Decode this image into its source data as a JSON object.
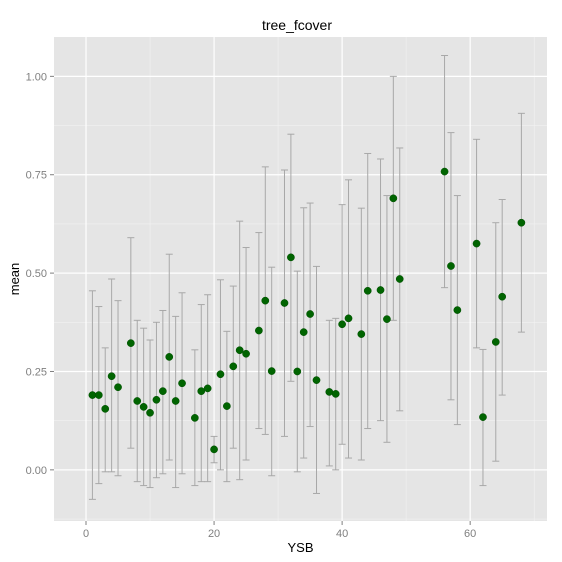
{
  "chart_data": {
    "type": "scatter",
    "title": "tree_fcover",
    "xlabel": "YSB",
    "ylabel": "mean",
    "xlim": [
      -5,
      72
    ],
    "ylim": [
      -0.13,
      1.1
    ],
    "x_ticks": [
      0,
      20,
      40,
      60
    ],
    "x_tick_labels": [
      "0",
      "20",
      "40",
      "60"
    ],
    "y_ticks": [
      0,
      0.25,
      0.5,
      0.75,
      1.0
    ],
    "y_tick_labels": [
      "0.00",
      "0.25",
      "0.50",
      "0.75",
      "1.00"
    ],
    "grid": true,
    "error_bars": true,
    "points": [
      {
        "x": 1,
        "y": 0.19,
        "lo": -0.075,
        "hi": 0.455
      },
      {
        "x": 2,
        "y": 0.19,
        "lo": -0.035,
        "hi": 0.415
      },
      {
        "x": 3,
        "y": 0.155,
        "lo": -0.005,
        "hi": 0.31
      },
      {
        "x": 4,
        "y": 0.238,
        "lo": -0.005,
        "hi": 0.485
      },
      {
        "x": 5,
        "y": 0.21,
        "lo": -0.015,
        "hi": 0.43
      },
      {
        "x": 7,
        "y": 0.322,
        "lo": 0.055,
        "hi": 0.59
      },
      {
        "x": 8,
        "y": 0.175,
        "lo": -0.03,
        "hi": 0.38
      },
      {
        "x": 9,
        "y": 0.16,
        "lo": -0.04,
        "hi": 0.36
      },
      {
        "x": 10,
        "y": 0.145,
        "lo": -0.045,
        "hi": 0.33
      },
      {
        "x": 11,
        "y": 0.178,
        "lo": -0.02,
        "hi": 0.375
      },
      {
        "x": 12,
        "y": 0.2,
        "lo": -0.01,
        "hi": 0.405
      },
      {
        "x": 13,
        "y": 0.287,
        "lo": 0.025,
        "hi": 0.548
      },
      {
        "x": 14,
        "y": 0.175,
        "lo": -0.045,
        "hi": 0.39
      },
      {
        "x": 15,
        "y": 0.22,
        "lo": -0.01,
        "hi": 0.45
      },
      {
        "x": 17,
        "y": 0.132,
        "lo": -0.04,
        "hi": 0.305
      },
      {
        "x": 18,
        "y": 0.2,
        "lo": -0.03,
        "hi": 0.42
      },
      {
        "x": 19,
        "y": 0.207,
        "lo": -0.03,
        "hi": 0.445
      },
      {
        "x": 20,
        "y": 0.052,
        "lo": 0.018,
        "hi": 0.085
      },
      {
        "x": 21,
        "y": 0.243,
        "lo": 0.0,
        "hi": 0.483
      },
      {
        "x": 22,
        "y": 0.162,
        "lo": -0.03,
        "hi": 0.352
      },
      {
        "x": 23,
        "y": 0.263,
        "lo": 0.055,
        "hi": 0.467
      },
      {
        "x": 24,
        "y": 0.304,
        "lo": -0.025,
        "hi": 0.632
      },
      {
        "x": 25,
        "y": 0.295,
        "lo": 0.025,
        "hi": 0.565
      },
      {
        "x": 27,
        "y": 0.354,
        "lo": 0.105,
        "hi": 0.603
      },
      {
        "x": 28,
        "y": 0.43,
        "lo": 0.09,
        "hi": 0.77
      },
      {
        "x": 29,
        "y": 0.251,
        "lo": -0.015,
        "hi": 0.515
      },
      {
        "x": 31,
        "y": 0.424,
        "lo": 0.085,
        "hi": 0.762
      },
      {
        "x": 32,
        "y": 0.54,
        "lo": 0.225,
        "hi": 0.853
      },
      {
        "x": 33,
        "y": 0.25,
        "lo": -0.005,
        "hi": 0.505
      },
      {
        "x": 34,
        "y": 0.35,
        "lo": 0.03,
        "hi": 0.666
      },
      {
        "x": 35,
        "y": 0.396,
        "lo": 0.11,
        "hi": 0.678
      },
      {
        "x": 36,
        "y": 0.228,
        "lo": -0.06,
        "hi": 0.517
      },
      {
        "x": 38,
        "y": 0.198,
        "lo": 0.01,
        "hi": 0.38
      },
      {
        "x": 39,
        "y": 0.193,
        "lo": 0.0,
        "hi": 0.385
      },
      {
        "x": 40,
        "y": 0.37,
        "lo": 0.065,
        "hi": 0.674
      },
      {
        "x": 41,
        "y": 0.385,
        "lo": 0.03,
        "hi": 0.737
      },
      {
        "x": 43,
        "y": 0.345,
        "lo": 0.025,
        "hi": 0.665
      },
      {
        "x": 44,
        "y": 0.455,
        "lo": 0.105,
        "hi": 0.804
      },
      {
        "x": 46,
        "y": 0.457,
        "lo": 0.125,
        "hi": 0.79
      },
      {
        "x": 47,
        "y": 0.383,
        "lo": 0.07,
        "hi": 0.697
      },
      {
        "x": 48,
        "y": 0.69,
        "lo": 0.38,
        "hi": 1.0
      },
      {
        "x": 49,
        "y": 0.485,
        "lo": 0.15,
        "hi": 0.818
      },
      {
        "x": 56,
        "y": 0.758,
        "lo": 0.463,
        "hi": 1.053
      },
      {
        "x": 57,
        "y": 0.518,
        "lo": 0.178,
        "hi": 0.857
      },
      {
        "x": 58,
        "y": 0.406,
        "lo": 0.115,
        "hi": 0.697
      },
      {
        "x": 61,
        "y": 0.575,
        "lo": 0.31,
        "hi": 0.84
      },
      {
        "x": 62,
        "y": 0.134,
        "lo": -0.04,
        "hi": 0.306
      },
      {
        "x": 64,
        "y": 0.325,
        "lo": 0.022,
        "hi": 0.628
      },
      {
        "x": 65,
        "y": 0.44,
        "lo": 0.19,
        "hi": 0.687
      },
      {
        "x": 68,
        "y": 0.628,
        "lo": 0.35,
        "hi": 0.906
      }
    ]
  },
  "colors": {
    "panel_background": "#e5e5e5",
    "grid_major": "#ffffff",
    "grid_minor": "#f2f2f2",
    "point": "#006400",
    "point_edge": "#004d00",
    "errorbar": "#a8a8a8",
    "tick_label": "#7f7f7f"
  }
}
